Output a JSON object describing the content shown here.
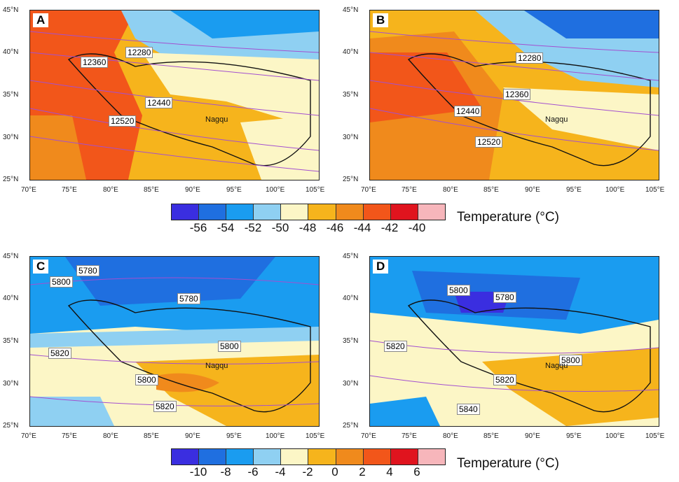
{
  "panels": [
    {
      "label": "A",
      "contour_labels": [
        "12280",
        "12360",
        "12440",
        "12520"
      ],
      "station": "Nagqu"
    },
    {
      "label": "B",
      "contour_labels": [
        "12280",
        "12360",
        "12440",
        "12520"
      ],
      "station": "Nagqu"
    },
    {
      "label": "C",
      "contour_labels": [
        "5780",
        "5800",
        "5780",
        "5800",
        "5820",
        "5800",
        "5820"
      ],
      "station": "Nagqu"
    },
    {
      "label": "D",
      "contour_labels": [
        "5800",
        "5780",
        "5820",
        "5800",
        "5820",
        "5840"
      ],
      "station": "Nagqu"
    }
  ],
  "x_ticks": [
    "70°E",
    "75°E",
    "80°E",
    "85°E",
    "90°E",
    "95°E",
    "100°E",
    "105°E"
  ],
  "y_ticks": [
    "45°N",
    "40°N",
    "35°N",
    "30°N",
    "25°N"
  ],
  "colorbar_top": {
    "title": "Temperature (°C)",
    "ticks": [
      "-56",
      "-54",
      "-52",
      "-50",
      "-48",
      "-46",
      "-44",
      "-42",
      "-40"
    ],
    "colors": [
      "#3a2ee0",
      "#1f6fe0",
      "#1a9cf0",
      "#8fd0f2",
      "#fcf6c6",
      "#f6b41c",
      "#f08a1c",
      "#f2561a",
      "#e0141e",
      "#f7b6bb"
    ]
  },
  "colorbar_bottom": {
    "title": "Temperature (°C)",
    "ticks": [
      "-10",
      "-8",
      "-6",
      "-4",
      "-2",
      "0",
      "2",
      "4",
      "6"
    ],
    "colors": [
      "#3a2ee0",
      "#1f6fe0",
      "#1a9cf0",
      "#8fd0f2",
      "#fcf6c6",
      "#f6b41c",
      "#f08a1c",
      "#f2561a",
      "#e0141e",
      "#f7b6bb"
    ]
  }
}
